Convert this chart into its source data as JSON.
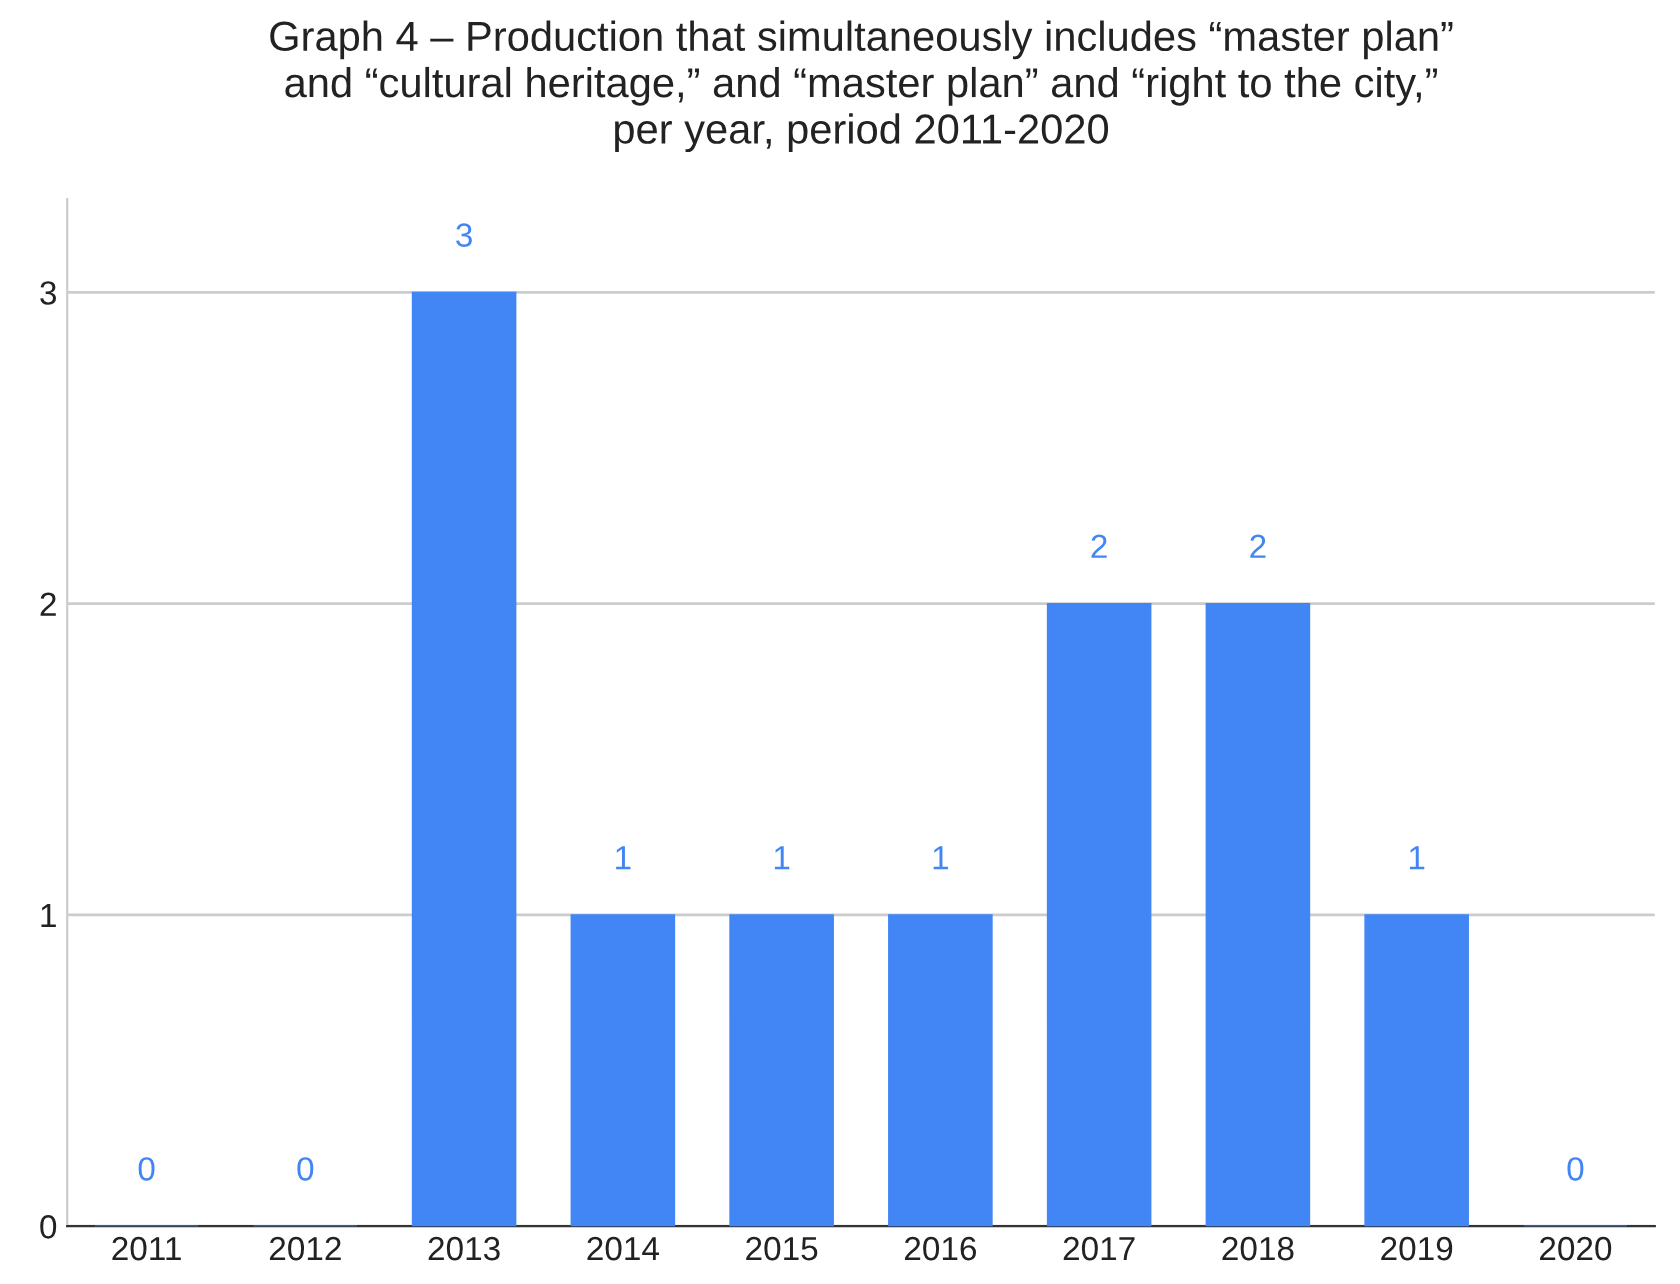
{
  "chart_data": {
    "type": "bar",
    "title": "Graph 4 – Production that simultaneously includes “master plan”\nand “cultural heritage,” and “master plan” and “right to the city,”\nper year, period 2011-2020",
    "categories": [
      "2011",
      "2012",
      "2013",
      "2014",
      "2015",
      "2016",
      "2017",
      "2018",
      "2019",
      "2020"
    ],
    "values": [
      0,
      0,
      3,
      1,
      1,
      1,
      2,
      2,
      1,
      0
    ],
    "color": "#4285f4",
    "ylim": [
      0,
      3.3
    ],
    "yticks": [
      0,
      1,
      2,
      3
    ],
    "grid": "y",
    "data_labels": true
  }
}
